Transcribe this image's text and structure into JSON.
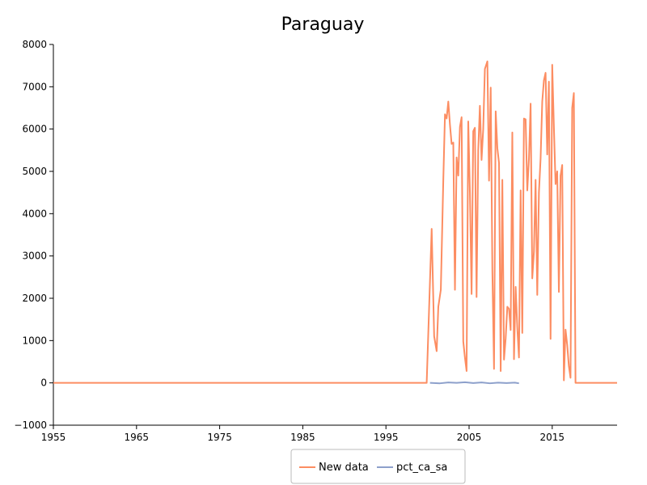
{
  "chart_data": {
    "type": "line",
    "title": "Paraguay",
    "xlabel": "",
    "ylabel": "",
    "xlim": [
      1955,
      2022.8
    ],
    "ylim": [
      -1000,
      8000
    ],
    "x_ticks": [
      1955,
      1965,
      1975,
      1985,
      1995,
      2005,
      2015
    ],
    "y_ticks": [
      -1000,
      0,
      1000,
      2000,
      3000,
      4000,
      5000,
      6000,
      7000,
      8000
    ],
    "x_tick_labels": [
      "1955",
      "1965",
      "1975",
      "1985",
      "1995",
      "2005",
      "2015"
    ],
    "y_tick_labels": [
      "−1000",
      "0",
      "1000",
      "2000",
      "3000",
      "4000",
      "5000",
      "6000",
      "7000",
      "8000"
    ],
    "grid": false,
    "legend_position": "bottom-center",
    "series": [
      {
        "name": "New data",
        "color": "#fc8d62",
        "points": [
          [
            1955,
            0
          ],
          [
            1999.9,
            0
          ],
          [
            2000.5,
            3640
          ],
          [
            2000.8,
            1100
          ],
          [
            2001.1,
            750
          ],
          [
            2001.3,
            1800
          ],
          [
            2001.6,
            2200
          ],
          [
            2001.9,
            4800
          ],
          [
            2002.1,
            6350
          ],
          [
            2002.3,
            6250
          ],
          [
            2002.5,
            6650
          ],
          [
            2002.7,
            6100
          ],
          [
            2002.9,
            5650
          ],
          [
            2003.1,
            5680
          ],
          [
            2003.3,
            2200
          ],
          [
            2003.5,
            5330
          ],
          [
            2003.7,
            4900
          ],
          [
            2003.9,
            6050
          ],
          [
            2004.1,
            6280
          ],
          [
            2004.3,
            980
          ],
          [
            2004.5,
            600
          ],
          [
            2004.7,
            280
          ],
          [
            2004.9,
            6180
          ],
          [
            2005.1,
            4500
          ],
          [
            2005.3,
            2100
          ],
          [
            2005.5,
            5950
          ],
          [
            2005.7,
            6030
          ],
          [
            2005.9,
            2030
          ],
          [
            2006.1,
            5500
          ],
          [
            2006.3,
            6550
          ],
          [
            2006.5,
            5270
          ],
          [
            2006.7,
            6000
          ],
          [
            2006.9,
            7420
          ],
          [
            2007.2,
            7600
          ],
          [
            2007.4,
            4780
          ],
          [
            2007.6,
            6980
          ],
          [
            2007.8,
            2650
          ],
          [
            2008.0,
            330
          ],
          [
            2008.2,
            6420
          ],
          [
            2008.4,
            5550
          ],
          [
            2008.6,
            5200
          ],
          [
            2008.8,
            280
          ],
          [
            2009.0,
            4800
          ],
          [
            2009.2,
            550
          ],
          [
            2009.4,
            1050
          ],
          [
            2009.6,
            1800
          ],
          [
            2009.8,
            1750
          ],
          [
            2010.0,
            1250
          ],
          [
            2010.2,
            5920
          ],
          [
            2010.4,
            560
          ],
          [
            2010.6,
            2270
          ],
          [
            2010.8,
            1300
          ],
          [
            2011.0,
            600
          ],
          [
            2011.2,
            4550
          ],
          [
            2011.4,
            1180
          ],
          [
            2011.6,
            6250
          ],
          [
            2011.8,
            6230
          ],
          [
            2012.0,
            4550
          ],
          [
            2012.2,
            5300
          ],
          [
            2012.4,
            6600
          ],
          [
            2012.6,
            2470
          ],
          [
            2012.8,
            3100
          ],
          [
            2013.0,
            4800
          ],
          [
            2013.2,
            2080
          ],
          [
            2013.4,
            4500
          ],
          [
            2013.6,
            5300
          ],
          [
            2013.8,
            6650
          ],
          [
            2014.0,
            7150
          ],
          [
            2014.2,
            7330
          ],
          [
            2014.4,
            5400
          ],
          [
            2014.6,
            7120
          ],
          [
            2014.8,
            1040
          ],
          [
            2015.0,
            7520
          ],
          [
            2015.2,
            6050
          ],
          [
            2015.4,
            4700
          ],
          [
            2015.6,
            5000
          ],
          [
            2015.8,
            2150
          ],
          [
            2016.0,
            4900
          ],
          [
            2016.2,
            5150
          ],
          [
            2016.4,
            60
          ],
          [
            2016.6,
            1260
          ],
          [
            2016.8,
            900
          ],
          [
            2017.0,
            400
          ],
          [
            2017.2,
            120
          ],
          [
            2017.4,
            6500
          ],
          [
            2017.6,
            6850
          ],
          [
            2017.8,
            0
          ],
          [
            2022.8,
            0
          ]
        ]
      },
      {
        "name": "pct_ca_sa",
        "color": "#8da0cb",
        "points": [
          [
            2000.3,
            0
          ],
          [
            2001.5,
            -10
          ],
          [
            2002.5,
            10
          ],
          [
            2003.5,
            0
          ],
          [
            2004.5,
            15
          ],
          [
            2005.5,
            -5
          ],
          [
            2006.5,
            10
          ],
          [
            2007.5,
            -10
          ],
          [
            2008.5,
            5
          ],
          [
            2009.5,
            -5
          ],
          [
            2010.5,
            5
          ],
          [
            2011.0,
            -10
          ]
        ]
      }
    ]
  }
}
